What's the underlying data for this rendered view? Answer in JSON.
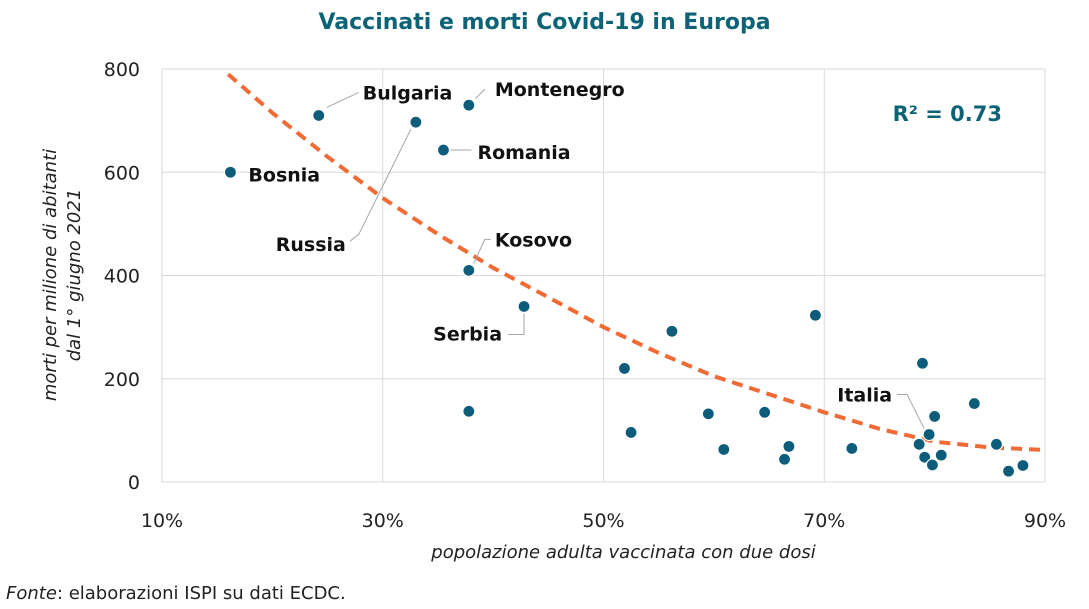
{
  "title": "Vaccinati e morti Covid-19 in Europa",
  "source": {
    "label": "Fonte",
    "text": ": elaborazioni ISPI su dati ECDC."
  },
  "colors": {
    "title": "#0d6376",
    "point": "#0d5c7a",
    "trend": "#f06a35",
    "r2": "#0d6376",
    "grid": "#d9d9d9"
  },
  "chart_data": {
    "type": "scatter",
    "title": "Vaccinati e morti Covid-19 in Europa",
    "xlabel": "popolazione adulta vaccinata con due dosi",
    "ylabel_line1": "morti per milione di abitanti",
    "ylabel_line2": "dal 1° giugno 2021",
    "xlim": [
      10,
      90
    ],
    "ylim": [
      0,
      800
    ],
    "x_ticks": [
      10,
      30,
      50,
      70,
      90
    ],
    "x_tick_labels": [
      "10%",
      "30%",
      "50%",
      "70%",
      "90%"
    ],
    "y_ticks": [
      0,
      200,
      400,
      600,
      800
    ],
    "y_tick_labels": [
      "0",
      "200",
      "400",
      "600",
      "800"
    ],
    "grid": true,
    "r2_label": "R² = 0.73",
    "points": [
      {
        "x": 16.2,
        "y": 600,
        "label": "Bosnia"
      },
      {
        "x": 24.2,
        "y": 710,
        "label": "Bulgaria"
      },
      {
        "x": 33.0,
        "y": 697,
        "label": "Russia"
      },
      {
        "x": 37.8,
        "y": 730,
        "label": "Montenegro"
      },
      {
        "x": 35.5,
        "y": 643,
        "label": "Romania"
      },
      {
        "x": 37.8,
        "y": 410,
        "label": "Kosovo"
      },
      {
        "x": 42.8,
        "y": 340,
        "label": "Serbia"
      },
      {
        "x": 37.8,
        "y": 137,
        "label": ""
      },
      {
        "x": 51.9,
        "y": 220,
        "label": ""
      },
      {
        "x": 52.5,
        "y": 96,
        "label": ""
      },
      {
        "x": 56.2,
        "y": 292,
        "label": ""
      },
      {
        "x": 59.5,
        "y": 132,
        "label": ""
      },
      {
        "x": 60.9,
        "y": 63,
        "label": ""
      },
      {
        "x": 64.6,
        "y": 135,
        "label": ""
      },
      {
        "x": 66.4,
        "y": 44,
        "label": ""
      },
      {
        "x": 66.8,
        "y": 69,
        "label": ""
      },
      {
        "x": 69.2,
        "y": 323,
        "label": ""
      },
      {
        "x": 72.5,
        "y": 65,
        "label": ""
      },
      {
        "x": 78.6,
        "y": 73,
        "label": ""
      },
      {
        "x": 78.9,
        "y": 230,
        "label": ""
      },
      {
        "x": 79.1,
        "y": 48,
        "label": ""
      },
      {
        "x": 79.5,
        "y": 92,
        "label": "Italia"
      },
      {
        "x": 79.8,
        "y": 33,
        "label": ""
      },
      {
        "x": 80.0,
        "y": 127,
        "label": ""
      },
      {
        "x": 80.6,
        "y": 52,
        "label": ""
      },
      {
        "x": 83.6,
        "y": 152,
        "label": ""
      },
      {
        "x": 85.6,
        "y": 73,
        "label": ""
      },
      {
        "x": 86.7,
        "y": 21,
        "label": ""
      },
      {
        "x": 88.0,
        "y": 32,
        "label": ""
      }
    ],
    "trendline": {
      "type": "polynomial",
      "x": [
        16,
        20,
        25,
        30,
        35,
        40,
        45,
        50,
        55,
        60,
        65,
        70,
        75,
        80,
        85,
        90
      ],
      "y": [
        790,
        715,
        630,
        550,
        480,
        415,
        358,
        300,
        250,
        205,
        170,
        135,
        103,
        78,
        67,
        62
      ]
    }
  }
}
